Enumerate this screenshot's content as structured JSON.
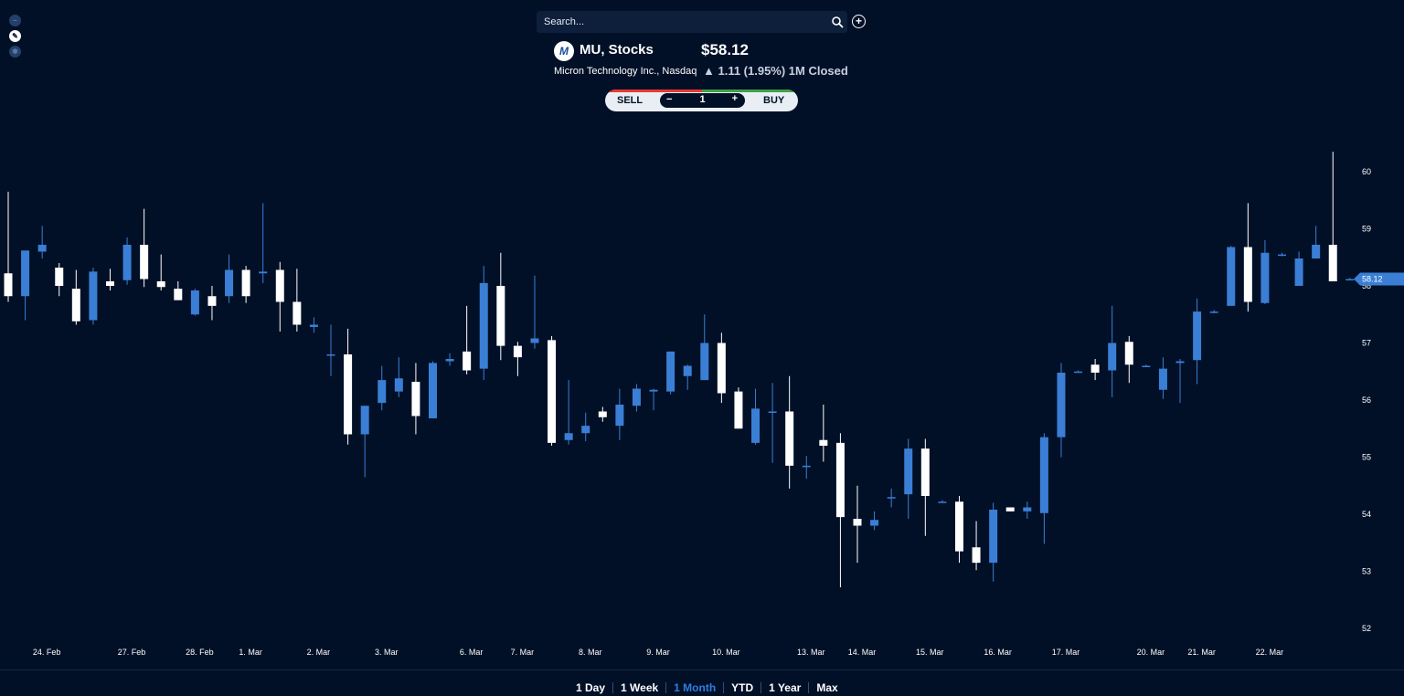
{
  "search": {
    "placeholder": "Search..."
  },
  "ticker": {
    "logo_text": "M",
    "symbol_title": "MU, Stocks",
    "company": "Micron Technology Inc., Nasdaq",
    "price": "$58.12",
    "change": "▲ 1.11 (1.95%) 1M Closed"
  },
  "trade": {
    "sell_label": "SELL",
    "buy_label": "BUY",
    "minus": "−",
    "plus": "+",
    "quantity": "1"
  },
  "ranges": [
    {
      "label": "1 Day",
      "active": false
    },
    {
      "label": "1 Week",
      "active": false
    },
    {
      "label": "1 Month",
      "active": true
    },
    {
      "label": "YTD",
      "active": false
    },
    {
      "label": "1 Year",
      "active": false
    },
    {
      "label": "Max",
      "active": false
    }
  ],
  "icons": {
    "search": "search-icon",
    "add": "plus-circle-icon"
  },
  "colors": {
    "up": "#3a7fd5",
    "down": "#ffffff",
    "background": "#011027",
    "price_tag": "#3a7fd5"
  },
  "chart_data": {
    "type": "candlestick",
    "ylim": [
      51.8,
      60.4
    ],
    "yticks": [
      52,
      53,
      54,
      55,
      56,
      57,
      58,
      59,
      60
    ],
    "last_price": 58.12,
    "last_price_label": "58.12",
    "x_labels": [
      {
        "label": "24. Feb",
        "index": 2
      },
      {
        "label": "27. Feb",
        "index": 7
      },
      {
        "label": "28. Feb",
        "index": 11
      },
      {
        "label": "1. Mar",
        "index": 14
      },
      {
        "label": "2. Mar",
        "index": 18
      },
      {
        "label": "3. Mar",
        "index": 22
      },
      {
        "label": "6. Mar",
        "index": 27
      },
      {
        "label": "7. Mar",
        "index": 30
      },
      {
        "label": "8. Mar",
        "index": 34
      },
      {
        "label": "9. Mar",
        "index": 38
      },
      {
        "label": "10. Mar",
        "index": 42
      },
      {
        "label": "13. Mar",
        "index": 47
      },
      {
        "label": "14. Mar",
        "index": 50
      },
      {
        "label": "15. Mar",
        "index": 54
      },
      {
        "label": "16. Mar",
        "index": 58
      },
      {
        "label": "17. Mar",
        "index": 62
      },
      {
        "label": "20. Mar",
        "index": 67
      },
      {
        "label": "21. Mar",
        "index": 70
      },
      {
        "label": "22. Mar",
        "index": 74
      }
    ],
    "candles": [
      {
        "o": 58.22,
        "h": 59.65,
        "l": 57.72,
        "c": 57.82
      },
      {
        "o": 57.82,
        "h": 58.55,
        "l": 57.4,
        "c": 58.62
      },
      {
        "o": 58.6,
        "h": 59.05,
        "l": 58.48,
        "c": 58.72
      },
      {
        "o": 58.32,
        "h": 58.4,
        "l": 57.82,
        "c": 58.0
      },
      {
        "o": 57.95,
        "h": 58.28,
        "l": 57.32,
        "c": 57.38
      },
      {
        "o": 57.4,
        "h": 58.32,
        "l": 57.32,
        "c": 58.25
      },
      {
        "o": 58.08,
        "h": 58.3,
        "l": 57.92,
        "c": 58.0
      },
      {
        "o": 58.1,
        "h": 58.85,
        "l": 58.02,
        "c": 58.72
      },
      {
        "o": 58.72,
        "h": 59.35,
        "l": 57.98,
        "c": 58.12
      },
      {
        "o": 58.08,
        "h": 58.55,
        "l": 57.92,
        "c": 57.98
      },
      {
        "o": 57.95,
        "h": 58.08,
        "l": 57.75,
        "c": 57.75
      },
      {
        "o": 57.5,
        "h": 57.95,
        "l": 57.48,
        "c": 57.92
      },
      {
        "o": 57.82,
        "h": 58.0,
        "l": 57.4,
        "c": 57.65
      },
      {
        "o": 57.82,
        "h": 58.55,
        "l": 57.7,
        "c": 58.28
      },
      {
        "o": 58.28,
        "h": 58.35,
        "l": 57.7,
        "c": 57.82
      },
      {
        "o": 58.22,
        "h": 59.45,
        "l": 58.05,
        "c": 58.25
      },
      {
        "o": 58.28,
        "h": 58.42,
        "l": 57.2,
        "c": 57.72
      },
      {
        "o": 57.72,
        "h": 58.3,
        "l": 57.2,
        "c": 57.32
      },
      {
        "o": 57.28,
        "h": 57.45,
        "l": 57.18,
        "c": 57.32
      },
      {
        "o": 56.8,
        "h": 57.32,
        "l": 56.42,
        "c": 56.8
      },
      {
        "o": 56.8,
        "h": 57.25,
        "l": 55.22,
        "c": 55.4
      },
      {
        "o": 55.4,
        "h": 55.9,
        "l": 54.65,
        "c": 55.9
      },
      {
        "o": 55.95,
        "h": 56.6,
        "l": 55.82,
        "c": 56.35
      },
      {
        "o": 56.15,
        "h": 56.75,
        "l": 56.05,
        "c": 56.38
      },
      {
        "o": 56.32,
        "h": 56.65,
        "l": 55.4,
        "c": 55.72
      },
      {
        "o": 55.68,
        "h": 56.68,
        "l": 55.68,
        "c": 56.65
      },
      {
        "o": 56.68,
        "h": 56.82,
        "l": 56.6,
        "c": 56.72
      },
      {
        "o": 56.85,
        "h": 57.65,
        "l": 56.45,
        "c": 56.52
      },
      {
        "o": 56.55,
        "h": 58.35,
        "l": 56.35,
        "c": 58.05
      },
      {
        "o": 58.0,
        "h": 58.58,
        "l": 56.7,
        "c": 56.95
      },
      {
        "o": 56.95,
        "h": 57.02,
        "l": 56.42,
        "c": 56.75
      },
      {
        "o": 57.0,
        "h": 58.18,
        "l": 56.9,
        "c": 57.08
      },
      {
        "o": 57.05,
        "h": 57.12,
        "l": 55.2,
        "c": 55.25
      },
      {
        "o": 55.3,
        "h": 56.35,
        "l": 55.22,
        "c": 55.42
      },
      {
        "o": 55.42,
        "h": 55.78,
        "l": 55.28,
        "c": 55.55
      },
      {
        "o": 55.8,
        "h": 55.88,
        "l": 55.62,
        "c": 55.7
      },
      {
        "o": 55.55,
        "h": 56.2,
        "l": 55.3,
        "c": 55.92
      },
      {
        "o": 55.9,
        "h": 56.28,
        "l": 55.8,
        "c": 56.2
      },
      {
        "o": 56.15,
        "h": 56.2,
        "l": 55.82,
        "c": 56.18
      },
      {
        "o": 56.15,
        "h": 56.85,
        "l": 56.1,
        "c": 56.85
      },
      {
        "o": 56.42,
        "h": 56.62,
        "l": 56.18,
        "c": 56.6
      },
      {
        "o": 56.35,
        "h": 57.5,
        "l": 56.35,
        "c": 57.0
      },
      {
        "o": 57.0,
        "h": 57.18,
        "l": 55.95,
        "c": 56.12
      },
      {
        "o": 56.15,
        "h": 56.22,
        "l": 55.5,
        "c": 55.5
      },
      {
        "o": 55.25,
        "h": 56.2,
        "l": 55.22,
        "c": 55.85
      },
      {
        "o": 55.8,
        "h": 56.3,
        "l": 54.9,
        "c": 55.8
      },
      {
        "o": 55.8,
        "h": 56.42,
        "l": 54.45,
        "c": 54.85
      },
      {
        "o": 54.85,
        "h": 55.02,
        "l": 54.62,
        "c": 54.85
      },
      {
        "o": 55.3,
        "h": 55.92,
        "l": 54.92,
        "c": 55.2
      },
      {
        "o": 55.25,
        "h": 55.42,
        "l": 52.72,
        "c": 53.95
      },
      {
        "o": 53.92,
        "h": 54.5,
        "l": 53.15,
        "c": 53.8
      },
      {
        "o": 53.8,
        "h": 54.05,
        "l": 53.72,
        "c": 53.9
      },
      {
        "o": 54.3,
        "h": 54.45,
        "l": 54.12,
        "c": 54.3
      },
      {
        "o": 54.35,
        "h": 55.32,
        "l": 53.92,
        "c": 55.15
      },
      {
        "o": 55.15,
        "h": 55.32,
        "l": 53.62,
        "c": 54.32
      },
      {
        "o": 54.22,
        "h": 54.25,
        "l": 54.2,
        "c": 54.22
      },
      {
        "o": 54.22,
        "h": 54.32,
        "l": 53.15,
        "c": 53.35
      },
      {
        "o": 53.42,
        "h": 53.88,
        "l": 53.02,
        "c": 53.15
      },
      {
        "o": 53.15,
        "h": 54.2,
        "l": 52.82,
        "c": 54.08
      },
      {
        "o": 54.12,
        "h": 54.12,
        "l": 54.05,
        "c": 54.05
      },
      {
        "o": 54.05,
        "h": 54.22,
        "l": 53.92,
        "c": 54.12
      },
      {
        "o": 54.02,
        "h": 55.42,
        "l": 53.48,
        "c": 55.35
      },
      {
        "o": 55.35,
        "h": 56.65,
        "l": 55.0,
        "c": 56.48
      },
      {
        "o": 56.5,
        "h": 56.52,
        "l": 56.48,
        "c": 56.5
      },
      {
        "o": 56.62,
        "h": 56.72,
        "l": 56.35,
        "c": 56.48
      },
      {
        "o": 56.52,
        "h": 57.65,
        "l": 56.05,
        "c": 57.0
      },
      {
        "o": 57.02,
        "h": 57.12,
        "l": 56.3,
        "c": 56.62
      },
      {
        "o": 56.6,
        "h": 56.62,
        "l": 56.58,
        "c": 56.6
      },
      {
        "o": 56.18,
        "h": 56.75,
        "l": 56.02,
        "c": 56.55
      },
      {
        "o": 56.65,
        "h": 56.72,
        "l": 55.95,
        "c": 56.68
      },
      {
        "o": 56.7,
        "h": 57.78,
        "l": 56.28,
        "c": 57.55
      },
      {
        "o": 57.55,
        "h": 57.58,
        "l": 57.52,
        "c": 57.55
      },
      {
        "o": 57.65,
        "h": 58.7,
        "l": 57.65,
        "c": 58.68
      },
      {
        "o": 58.68,
        "h": 59.45,
        "l": 57.55,
        "c": 57.72
      },
      {
        "o": 57.7,
        "h": 58.8,
        "l": 57.68,
        "c": 58.58
      },
      {
        "o": 58.55,
        "h": 58.58,
        "l": 58.52,
        "c": 58.55
      },
      {
        "o": 58.0,
        "h": 58.6,
        "l": 58.0,
        "c": 58.48
      },
      {
        "o": 58.48,
        "h": 59.05,
        "l": 58.48,
        "c": 58.72
      },
      {
        "o": 58.72,
        "h": 60.35,
        "l": 58.12,
        "c": 58.08
      },
      {
        "o": 58.12,
        "h": 58.14,
        "l": 58.1,
        "c": 58.12
      }
    ]
  }
}
